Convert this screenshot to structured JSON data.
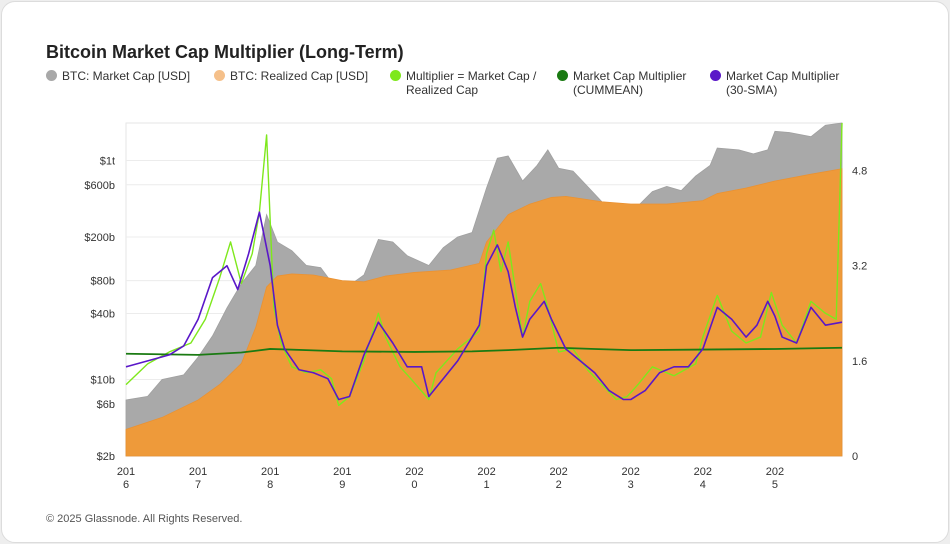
{
  "card": {
    "title": "Bitcoin Market Cap Multiplier (Long-Term)",
    "footer": "© 2025 Glassnode. All Rights Reserved."
  },
  "legend": [
    {
      "label": "BTC: Market Cap [USD]",
      "color": "#a8a8a8"
    },
    {
      "label": "BTC: Realized Cap [USD]",
      "color": "#f5c08a"
    },
    {
      "label": "Multiplier = Market Cap / Realized Cap",
      "color": "#7ee81c"
    },
    {
      "label": "Market Cap Multiplier (CUMMEAN)",
      "color": "#1a7a12"
    },
    {
      "label": "Market Cap Multiplier (30-SMA)",
      "color": "#5a17c8"
    }
  ],
  "chart_data": {
    "type": "area",
    "title": "Bitcoin Market Cap Multiplier (Long-Term)",
    "x_ticks": [
      {
        "line1": "201",
        "line2": "6",
        "year": 2016
      },
      {
        "line1": "201",
        "line2": "7",
        "year": 2017
      },
      {
        "line1": "201",
        "line2": "8",
        "year": 2018
      },
      {
        "line1": "201",
        "line2": "9",
        "year": 2019
      },
      {
        "line1": "202",
        "line2": "0",
        "year": 2020
      },
      {
        "line1": "202",
        "line2": "1",
        "year": 2021
      },
      {
        "line1": "202",
        "line2": "2",
        "year": 2022
      },
      {
        "line1": "202",
        "line2": "3",
        "year": 2023
      },
      {
        "line1": "202",
        "line2": "4",
        "year": 2024
      },
      {
        "line1": "202",
        "line2": "5",
        "year": 2025
      }
    ],
    "x_range": [
      2016.0,
      2025.93
    ],
    "left_axis": {
      "scale": "log",
      "range_usd_billions": [
        2,
        2200
      ],
      "ticks": [
        {
          "label": "$1t",
          "value": 1000
        },
        {
          "label": "$600b",
          "value": 600
        },
        {
          "label": "$200b",
          "value": 200
        },
        {
          "label": "$80b",
          "value": 80
        },
        {
          "label": "$40b",
          "value": 40
        },
        {
          "label": "$10b",
          "value": 10
        },
        {
          "label": "$6b",
          "value": 6
        },
        {
          "label": "$2b",
          "value": 2
        }
      ]
    },
    "right_axis": {
      "scale": "linear",
      "range": [
        0,
        5.6
      ],
      "ticks": [
        {
          "label": "4.8",
          "value": 4.8
        },
        {
          "label": "3.2",
          "value": 3.2
        },
        {
          "label": "1.6",
          "value": 1.6
        },
        {
          "label": "0",
          "value": 0
        }
      ]
    },
    "series": [
      {
        "name": "BTC: Market Cap [USD]",
        "axis": "left",
        "unit": "USD billions",
        "x": [
          2016.0,
          2016.3,
          2016.5,
          2016.8,
          2017.0,
          2017.2,
          2017.4,
          2017.6,
          2017.8,
          2017.95,
          2018.1,
          2018.3,
          2018.5,
          2018.7,
          2018.9,
          2019.0,
          2019.3,
          2019.5,
          2019.7,
          2019.9,
          2020.2,
          2020.4,
          2020.6,
          2020.8,
          2021.0,
          2021.15,
          2021.3,
          2021.5,
          2021.7,
          2021.85,
          2022.0,
          2022.2,
          2022.4,
          2022.6,
          2022.8,
          2023.0,
          2023.3,
          2023.5,
          2023.7,
          2023.9,
          2024.1,
          2024.2,
          2024.5,
          2024.7,
          2024.9,
          2025.0,
          2025.2,
          2025.5,
          2025.7,
          2025.93
        ],
        "values": [
          6.5,
          7,
          10,
          11,
          16,
          25,
          45,
          75,
          110,
          320,
          180,
          150,
          110,
          105,
          70,
          65,
          90,
          190,
          180,
          135,
          110,
          160,
          200,
          220,
          560,
          1050,
          1100,
          650,
          900,
          1250,
          850,
          800,
          580,
          420,
          380,
          330,
          520,
          580,
          530,
          720,
          900,
          1300,
          1250,
          1150,
          1250,
          1850,
          1800,
          1650,
          2100,
          2200
        ]
      },
      {
        "name": "BTC: Realized Cap [USD]",
        "axis": "left",
        "unit": "USD billions",
        "x": [
          2016.0,
          2016.5,
          2017.0,
          2017.3,
          2017.6,
          2017.8,
          2017.95,
          2018.1,
          2018.3,
          2018.6,
          2019.0,
          2019.3,
          2019.6,
          2020.0,
          2020.5,
          2020.9,
          2021.0,
          2021.3,
          2021.6,
          2021.9,
          2022.1,
          2022.3,
          2022.6,
          2023.0,
          2023.5,
          2024.0,
          2024.2,
          2024.6,
          2025.0,
          2025.5,
          2025.93
        ],
        "values": [
          3.5,
          4.5,
          6.5,
          9,
          14,
          30,
          70,
          88,
          92,
          90,
          80,
          78,
          88,
          95,
          100,
          115,
          180,
          320,
          400,
          460,
          470,
          450,
          420,
          400,
          400,
          430,
          500,
          560,
          650,
          750,
          840
        ]
      },
      {
        "name": "Multiplier = Market Cap / Realized Cap",
        "axis": "right",
        "x": [
          2016.0,
          2016.3,
          2016.6,
          2016.9,
          2017.1,
          2017.3,
          2017.45,
          2017.6,
          2017.75,
          2017.85,
          2017.95,
          2018.05,
          2018.15,
          2018.3,
          2018.5,
          2018.7,
          2018.85,
          2018.95,
          2019.1,
          2019.3,
          2019.5,
          2019.6,
          2019.8,
          2019.95,
          2020.2,
          2020.3,
          2020.6,
          2020.9,
          2021.0,
          2021.1,
          2021.2,
          2021.3,
          2021.5,
          2021.6,
          2021.75,
          2021.85,
          2022.0,
          2022.2,
          2022.4,
          2022.6,
          2022.8,
          2022.95,
          2023.1,
          2023.3,
          2023.6,
          2023.9,
          2024.0,
          2024.2,
          2024.4,
          2024.6,
          2024.8,
          2024.95,
          2025.1,
          2025.3,
          2025.5,
          2025.7,
          2025.85,
          2025.93
        ],
        "values": [
          1.2,
          1.55,
          1.75,
          1.9,
          2.3,
          3.0,
          3.6,
          2.9,
          3.4,
          4.1,
          5.4,
          2.5,
          1.9,
          1.5,
          1.4,
          1.45,
          1.3,
          0.85,
          1.0,
          1.6,
          2.4,
          2.0,
          1.5,
          1.3,
          0.95,
          1.4,
          1.8,
          2.1,
          3.4,
          3.8,
          3.1,
          3.6,
          2.0,
          2.6,
          2.9,
          2.5,
          1.75,
          1.8,
          1.45,
          1.2,
          0.95,
          1.0,
          1.2,
          1.5,
          1.35,
          1.55,
          2.0,
          2.7,
          2.1,
          1.9,
          2.0,
          2.75,
          2.2,
          1.9,
          2.6,
          2.4,
          2.3,
          5.6
        ]
      },
      {
        "name": "Market Cap Multiplier (CUMMEAN)",
        "axis": "right",
        "x": [
          2016.0,
          2017.0,
          2017.6,
          2018.0,
          2018.5,
          2019.0,
          2020.0,
          2020.8,
          2021.3,
          2022.0,
          2022.5,
          2023.0,
          2024.0,
          2025.0,
          2025.93
        ],
        "values": [
          1.72,
          1.7,
          1.74,
          1.8,
          1.78,
          1.76,
          1.75,
          1.76,
          1.78,
          1.82,
          1.8,
          1.78,
          1.79,
          1.8,
          1.82
        ]
      },
      {
        "name": "Market Cap Multiplier (30-SMA)",
        "axis": "right",
        "x": [
          2016.0,
          2016.3,
          2016.6,
          2016.8,
          2017.0,
          2017.2,
          2017.4,
          2017.55,
          2017.7,
          2017.85,
          2018.0,
          2018.1,
          2018.2,
          2018.4,
          2018.6,
          2018.8,
          2018.95,
          2019.1,
          2019.3,
          2019.5,
          2019.7,
          2019.9,
          2020.1,
          2020.2,
          2020.4,
          2020.6,
          2020.9,
          2021.0,
          2021.15,
          2021.3,
          2021.4,
          2021.5,
          2021.6,
          2021.8,
          2021.9,
          2022.1,
          2022.3,
          2022.5,
          2022.7,
          2022.9,
          2023.0,
          2023.2,
          2023.4,
          2023.6,
          2023.8,
          2024.0,
          2024.2,
          2024.4,
          2024.6,
          2024.75,
          2024.9,
          2025.0,
          2025.1,
          2025.3,
          2025.5,
          2025.7,
          2025.93
        ],
        "values": [
          1.5,
          1.6,
          1.7,
          1.85,
          2.3,
          3.0,
          3.2,
          2.8,
          3.4,
          4.1,
          3.2,
          2.2,
          1.8,
          1.45,
          1.4,
          1.3,
          0.95,
          1.0,
          1.7,
          2.25,
          1.9,
          1.5,
          1.5,
          1.0,
          1.3,
          1.6,
          2.2,
          3.2,
          3.55,
          3.1,
          2.5,
          2.0,
          2.3,
          2.6,
          2.3,
          1.8,
          1.6,
          1.4,
          1.1,
          0.95,
          0.95,
          1.1,
          1.4,
          1.5,
          1.5,
          1.8,
          2.5,
          2.3,
          2.0,
          2.2,
          2.6,
          2.35,
          2.0,
          1.9,
          2.5,
          2.2,
          2.25
        ]
      }
    ],
    "legend_position": "top",
    "grid": true
  }
}
